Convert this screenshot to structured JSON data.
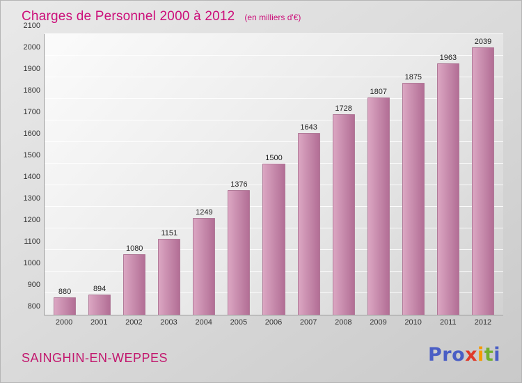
{
  "header": {
    "title": "Charges de Personnel 2000 à 2012",
    "subtitle": "(en milliers d'€)"
  },
  "chart_data": {
    "type": "bar",
    "title": "Charges de Personnel 2000 à 2012",
    "subtitle": "(en milliers d'€)",
    "categories": [
      "2000",
      "2001",
      "2002",
      "2003",
      "2004",
      "2005",
      "2006",
      "2007",
      "2008",
      "2009",
      "2010",
      "2011",
      "2012"
    ],
    "values": [
      880,
      894,
      1080,
      1151,
      1249,
      1376,
      1500,
      1643,
      1728,
      1807,
      1875,
      1963,
      2039
    ],
    "xlabel": "",
    "ylabel": "",
    "ylim": [
      800,
      2100
    ],
    "ytick_step": 100,
    "grid": true,
    "legend_position": "none"
  },
  "colors": {
    "title": "#cc0f7a",
    "bar_light": "#dba6c2",
    "bar_dark": "#b26e95",
    "city": "#c2186e"
  },
  "footer": {
    "city": "SAINGHIN-EN-WEPPES",
    "logo": {
      "letters": [
        {
          "ch": "P",
          "color": "#4a5ec5"
        },
        {
          "ch": "r",
          "color": "#4a5ec5"
        },
        {
          "ch": "o",
          "color": "#4a5ec5"
        },
        {
          "ch": "x",
          "color": "#e03a2a"
        },
        {
          "ch": "i",
          "color": "#f59a00"
        },
        {
          "ch": "t",
          "color": "#72b02e"
        },
        {
          "ch": "i",
          "color": "#4a5ec5"
        }
      ]
    }
  }
}
